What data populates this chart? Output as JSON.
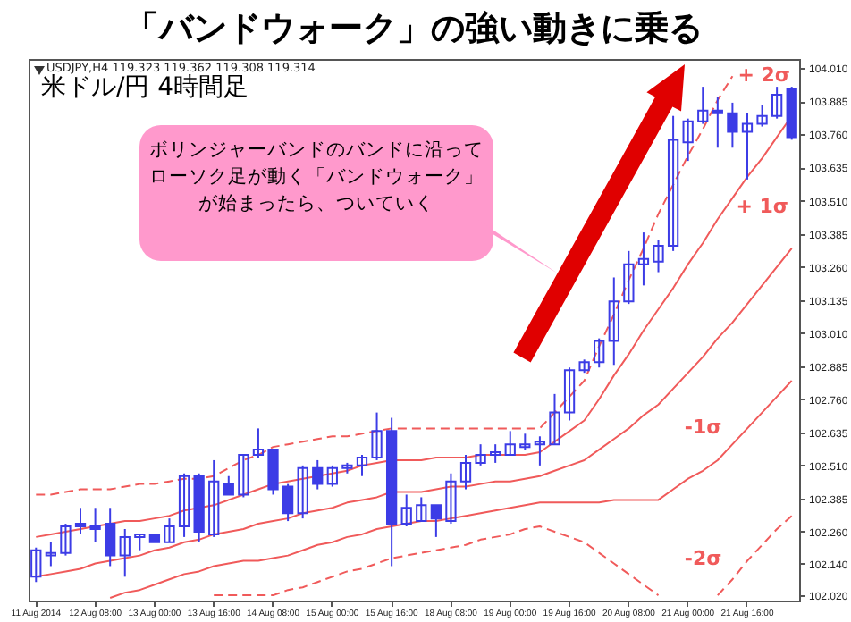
{
  "chart_data": {
    "type": "candlestick",
    "title": "「バンドウォーク」の強い動きに乗る",
    "subtitle": "米ドル/円 4時間足",
    "annotations": [
      "USDJPY,H4 119.323 119.362 119.308 119.314",
      "ボリンジャーバンドのバンドに沿ってローソク足が動く「バンドウォーク」が始まったら、ついていく"
    ],
    "categories": [
      "11 Aug 2014",
      null,
      null,
      null,
      "12 Aug 08:00",
      null,
      null,
      null,
      "13 Aug 00:00",
      null,
      null,
      null,
      "13 Aug 16:00",
      null,
      null,
      null,
      "14 Aug 08:00",
      null,
      null,
      null,
      "15 Aug 00:00",
      null,
      null,
      null,
      "15 Aug 16:00",
      null,
      null,
      null,
      "18 Aug 08:00",
      null,
      null,
      null,
      "19 Aug 00:00",
      null,
      null,
      null,
      "19 Aug 16:00",
      null,
      null,
      null,
      "20 Aug 08:00",
      null,
      null,
      null,
      "21 Aug 00:00",
      null,
      null,
      null,
      "21 Aug 16:00",
      null,
      null,
      null
    ],
    "color": "#3c3ce6",
    "ohlc": [
      [
        102.09,
        102.2,
        102.07,
        102.19
      ],
      [
        102.17,
        102.22,
        102.13,
        102.18
      ],
      [
        102.18,
        102.29,
        102.17,
        102.28
      ],
      [
        102.28,
        102.35,
        102.25,
        102.29
      ],
      [
        102.28,
        102.35,
        102.22,
        102.27
      ],
      [
        102.29,
        102.35,
        102.13,
        102.17
      ],
      [
        102.17,
        102.27,
        102.09,
        102.24
      ],
      [
        102.24,
        102.25,
        102.19,
        102.25
      ],
      [
        102.25,
        102.25,
        102.22,
        102.22
      ],
      [
        102.22,
        102.31,
        102.22,
        102.28
      ],
      [
        102.28,
        102.48,
        102.24,
        102.47
      ],
      [
        102.47,
        102.48,
        102.22,
        102.26
      ],
      [
        102.25,
        102.53,
        102.24,
        102.45
      ],
      [
        102.44,
        102.47,
        102.4,
        102.4
      ],
      [
        102.4,
        102.55,
        102.39,
        102.55
      ],
      [
        102.55,
        102.65,
        102.54,
        102.57
      ],
      [
        102.57,
        102.57,
        102.4,
        102.42
      ],
      [
        102.43,
        102.44,
        102.3,
        102.33
      ],
      [
        102.33,
        102.51,
        102.31,
        102.5
      ],
      [
        102.5,
        102.53,
        102.42,
        102.44
      ],
      [
        102.44,
        102.51,
        102.43,
        102.5
      ],
      [
        102.5,
        102.52,
        102.48,
        102.51
      ],
      [
        102.51,
        102.55,
        102.47,
        102.54
      ],
      [
        102.54,
        102.71,
        102.53,
        102.64
      ],
      [
        102.64,
        102.69,
        102.13,
        102.29
      ],
      [
        102.29,
        102.4,
        102.28,
        102.35
      ],
      [
        102.3,
        102.39,
        102.3,
        102.36
      ],
      [
        102.36,
        102.36,
        102.24,
        102.31
      ],
      [
        102.3,
        102.48,
        102.29,
        102.45
      ],
      [
        102.45,
        102.55,
        102.42,
        102.52
      ],
      [
        102.52,
        102.59,
        102.51,
        102.55
      ],
      [
        102.55,
        102.59,
        102.52,
        102.56
      ],
      [
        102.55,
        102.64,
        102.55,
        102.59
      ],
      [
        102.58,
        102.63,
        102.57,
        102.59
      ],
      [
        102.59,
        102.62,
        102.51,
        102.6
      ],
      [
        102.59,
        102.78,
        102.59,
        102.71
      ],
      [
        102.71,
        102.88,
        102.68,
        102.87
      ],
      [
        102.87,
        102.91,
        102.86,
        102.9
      ],
      [
        102.9,
        102.99,
        102.88,
        102.98
      ],
      [
        102.98,
        103.22,
        102.89,
        103.13
      ],
      [
        103.13,
        103.32,
        103.12,
        103.27
      ],
      [
        103.27,
        103.39,
        103.19,
        103.29
      ],
      [
        103.28,
        103.36,
        103.24,
        103.34
      ],
      [
        103.34,
        103.83,
        103.32,
        103.74
      ],
      [
        103.73,
        103.82,
        103.66,
        103.81
      ],
      [
        103.81,
        103.94,
        103.8,
        103.85
      ],
      [
        103.85,
        103.9,
        103.71,
        103.84
      ],
      [
        103.84,
        103.88,
        103.71,
        103.77
      ],
      [
        103.77,
        103.84,
        103.59,
        103.8
      ],
      [
        103.8,
        103.87,
        103.79,
        103.83
      ],
      [
        103.83,
        103.94,
        103.82,
        103.91
      ],
      [
        103.93,
        103.94,
        103.74,
        103.75
      ]
    ],
    "series": [
      {
        "name": "+ 2σ",
        "type": "line",
        "color": "#f05a5a",
        "line_style": "dashed",
        "values": [
          102.4,
          102.4,
          102.41,
          102.42,
          102.42,
          102.42,
          102.43,
          102.44,
          102.44,
          102.45,
          102.46,
          102.46,
          102.47,
          102.5,
          102.53,
          102.55,
          102.58,
          102.59,
          102.6,
          102.61,
          102.62,
          102.62,
          102.63,
          102.64,
          102.65,
          102.65,
          102.65,
          102.65,
          102.65,
          102.65,
          102.65,
          102.65,
          102.65,
          102.65,
          102.65,
          102.71,
          102.77,
          102.83,
          102.96,
          103.08,
          103.21,
          103.33,
          103.46,
          103.57,
          103.68,
          103.78,
          103.89,
          103.98,
          null,
          null,
          null,
          null
        ]
      },
      {
        "name": "+ 1σ",
        "type": "line",
        "color": "#f05a5a",
        "line_style": "solid",
        "values": [
          102.24,
          102.25,
          102.26,
          102.27,
          102.28,
          102.29,
          102.3,
          102.3,
          102.31,
          102.32,
          102.34,
          102.35,
          102.36,
          102.38,
          102.4,
          102.42,
          102.44,
          102.45,
          102.46,
          102.47,
          102.48,
          102.49,
          102.51,
          102.52,
          102.53,
          102.53,
          102.53,
          102.54,
          102.54,
          102.54,
          102.55,
          102.55,
          102.55,
          102.55,
          102.56,
          102.6,
          102.64,
          102.68,
          102.76,
          102.85,
          102.93,
          103.02,
          103.1,
          103.18,
          103.27,
          103.35,
          103.44,
          103.52,
          103.6,
          103.67,
          103.75,
          103.83
        ]
      },
      {
        "type": "line",
        "color": "#f05a5a",
        "line_style": "solid",
        "values": [
          102.09,
          102.1,
          102.11,
          102.12,
          102.14,
          102.15,
          102.16,
          102.17,
          102.19,
          102.2,
          102.22,
          102.23,
          102.25,
          102.26,
          102.27,
          102.29,
          102.3,
          102.31,
          102.33,
          102.34,
          102.35,
          102.37,
          102.38,
          102.39,
          102.41,
          102.41,
          102.41,
          102.42,
          102.43,
          102.43,
          102.44,
          102.45,
          102.45,
          102.46,
          102.47,
          102.49,
          102.51,
          102.53,
          102.57,
          102.61,
          102.65,
          102.7,
          102.74,
          102.8,
          102.86,
          102.92,
          102.99,
          103.05,
          103.12,
          103.19,
          103.26,
          103.33
        ]
      },
      {
        "name": "-1σ",
        "type": "line",
        "color": "#f05a5a",
        "line_style": "solid",
        "values": [
          null,
          null,
          null,
          null,
          null,
          102.01,
          102.03,
          102.04,
          102.06,
          102.08,
          102.1,
          102.11,
          102.13,
          102.14,
          102.15,
          102.15,
          102.16,
          102.17,
          102.19,
          102.21,
          102.22,
          102.24,
          102.25,
          102.27,
          102.28,
          102.29,
          102.3,
          102.3,
          102.31,
          102.32,
          102.33,
          102.34,
          102.35,
          102.36,
          102.37,
          102.37,
          102.37,
          102.37,
          102.37,
          102.38,
          102.38,
          102.38,
          102.38,
          102.42,
          102.46,
          102.49,
          102.53,
          102.59,
          102.65,
          102.71,
          102.77,
          102.83
        ]
      },
      {
        "name": "-2σ",
        "type": "line",
        "color": "#f05a5a",
        "line_style": "dashed",
        "values": [
          null,
          null,
          null,
          null,
          null,
          null,
          null,
          null,
          null,
          null,
          null,
          null,
          102.02,
          102.02,
          102.02,
          102.02,
          102.02,
          102.04,
          102.05,
          102.07,
          102.09,
          102.11,
          102.12,
          102.14,
          102.16,
          102.17,
          102.18,
          102.19,
          102.2,
          102.21,
          102.23,
          102.24,
          102.25,
          102.27,
          102.28,
          102.26,
          102.24,
          102.22,
          102.18,
          102.14,
          102.1,
          102.06,
          102.02,
          null,
          null,
          null,
          102.02,
          102.08,
          102.15,
          102.21,
          102.27,
          102.32
        ]
      }
    ],
    "ylim": [
      102.0,
      104.045
    ],
    "yticks": [
      {
        "value": 104.01,
        "label": "104.010"
      },
      {
        "value": 103.885,
        "label": "103.885"
      },
      {
        "value": 103.76,
        "label": "103.760"
      },
      {
        "value": 103.635,
        "label": "103.635"
      },
      {
        "value": 103.51,
        "label": "103.510"
      },
      {
        "value": 103.385,
        "label": "103.385"
      },
      {
        "value": 103.26,
        "label": "103.260"
      },
      {
        "value": 103.135,
        "label": "103.135"
      },
      {
        "value": 103.01,
        "label": "103.010"
      },
      {
        "value": 102.885,
        "label": "102.885"
      },
      {
        "value": 102.76,
        "label": "102.760"
      },
      {
        "value": 102.635,
        "label": "102.635"
      },
      {
        "value": 102.51,
        "label": "102.510"
      },
      {
        "value": 102.385,
        "label": "102.385"
      },
      {
        "value": 102.26,
        "label": "102.260"
      },
      {
        "value": 102.14,
        "label": "102.140"
      },
      {
        "value": 102.02,
        "label": "102.020"
      }
    ]
  }
}
